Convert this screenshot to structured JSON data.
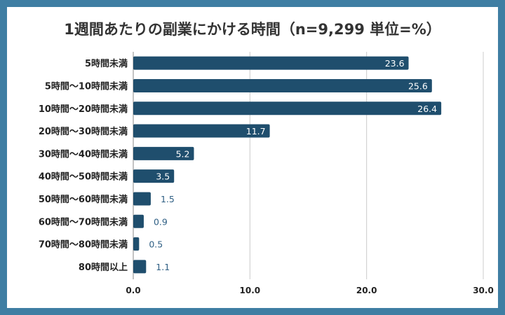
{
  "colors": {
    "background": "#3f7ea3",
    "bar": "#1f4e6d",
    "grid": "#cccccc"
  },
  "chart_data": {
    "type": "bar",
    "orientation": "horizontal",
    "title": "1週間あたりの副業にかける時間（n=9,299 単位=%）",
    "categories": [
      "5時間未満",
      "5時間〜10時間未満",
      "10時間〜20時間未満",
      "20時間〜30時間未満",
      "30時間〜40時間未満",
      "40時間〜50時間未満",
      "50時間〜60時間未満",
      "60時間〜70時間未満",
      "70時間〜80時間未満",
      "80時間以上"
    ],
    "values": [
      23.6,
      25.6,
      26.4,
      11.7,
      5.2,
      3.5,
      1.5,
      0.9,
      0.5,
      1.1
    ],
    "value_labels": [
      "23.6",
      "25.6",
      "26.4",
      "11.7",
      "5.2",
      "3.5",
      "1.5",
      "0.9",
      "0.5",
      "1.1"
    ],
    "xlim": [
      0,
      30
    ],
    "x_ticks": [
      0,
      10,
      20,
      30
    ],
    "x_tick_labels": [
      "0.0",
      "10.0",
      "20.0",
      "30.0"
    ],
    "grid": true,
    "legend": "none"
  }
}
